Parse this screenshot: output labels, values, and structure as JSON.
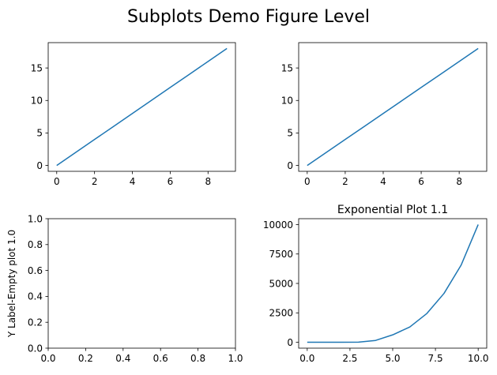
{
  "figure": {
    "suptitle": "Subplots Demo Figure Level"
  },
  "colors": {
    "line": "#1f77b4",
    "axes": "#000000",
    "background": "#ffffff"
  },
  "chart_data": [
    {
      "type": "line",
      "title": "",
      "xlabel": "",
      "ylabel": "",
      "x": [
        0,
        1,
        2,
        3,
        4,
        5,
        6,
        7,
        8,
        9
      ],
      "series": [
        {
          "values": [
            0,
            2,
            4,
            6,
            8,
            10,
            12,
            14,
            16,
            18
          ]
        }
      ],
      "xlim": [
        -0.45,
        9.45
      ],
      "ylim": [
        -0.9,
        18.9
      ],
      "xticks": [
        0,
        2,
        4,
        6,
        8
      ],
      "xtick_labels": [
        "0",
        "2",
        "4",
        "6",
        "8"
      ],
      "yticks": [
        0,
        5,
        10,
        15
      ],
      "ytick_labels": [
        "0",
        "5",
        "10",
        "15"
      ],
      "grid": false
    },
    {
      "type": "line",
      "title": "",
      "xlabel": "",
      "ylabel": "",
      "x": [
        0,
        1,
        2,
        3,
        4,
        5,
        6,
        7,
        8,
        9
      ],
      "series": [
        {
          "values": [
            0,
            2,
            4,
            6,
            8,
            10,
            12,
            14,
            16,
            18
          ]
        }
      ],
      "xlim": [
        -0.45,
        9.45
      ],
      "ylim": [
        -0.9,
        18.9
      ],
      "xticks": [
        0,
        2,
        4,
        6,
        8
      ],
      "xtick_labels": [
        "0",
        "2",
        "4",
        "6",
        "8"
      ],
      "yticks": [
        0,
        5,
        10,
        15
      ],
      "ytick_labels": [
        "0",
        "5",
        "10",
        "15"
      ],
      "grid": false
    },
    {
      "type": "line",
      "title": "",
      "xlabel": "",
      "ylabel": "Y Label-Empty plot 1.0",
      "x": [],
      "series": [],
      "xlim": [
        0,
        1
      ],
      "ylim": [
        0,
        1
      ],
      "xticks": [
        0,
        0.2,
        0.4,
        0.6,
        0.8,
        1.0
      ],
      "xtick_labels": [
        "0.0",
        "0.2",
        "0.4",
        "0.6",
        "0.8",
        "1.0"
      ],
      "yticks": [
        0,
        0.2,
        0.4,
        0.6,
        0.8,
        1.0
      ],
      "ytick_labels": [
        "0.0",
        "0.2",
        "0.4",
        "0.6",
        "0.8",
        "1.0"
      ],
      "grid": false
    },
    {
      "type": "line",
      "title": "Exponential Plot 1.1",
      "xlabel": "",
      "ylabel": "",
      "x": [
        0,
        1,
        2,
        3,
        4,
        5,
        6,
        7,
        8,
        9,
        10
      ],
      "series": [
        {
          "values": [
            1,
            2.5,
            6.3,
            15.8,
            158,
            631,
            1300,
            2450,
            4150,
            6550,
            10000
          ]
        }
      ],
      "xlim": [
        -0.5,
        10.5
      ],
      "ylim": [
        -499,
        10500
      ],
      "xticks": [
        0,
        2.5,
        5,
        7.5,
        10
      ],
      "xtick_labels": [
        "0.0",
        "2.5",
        "5.0",
        "7.5",
        "10.0"
      ],
      "yticks": [
        0,
        2500,
        5000,
        7500,
        10000
      ],
      "ytick_labels": [
        "0",
        "2500",
        "5000",
        "7500",
        "10000"
      ],
      "grid": false
    }
  ]
}
